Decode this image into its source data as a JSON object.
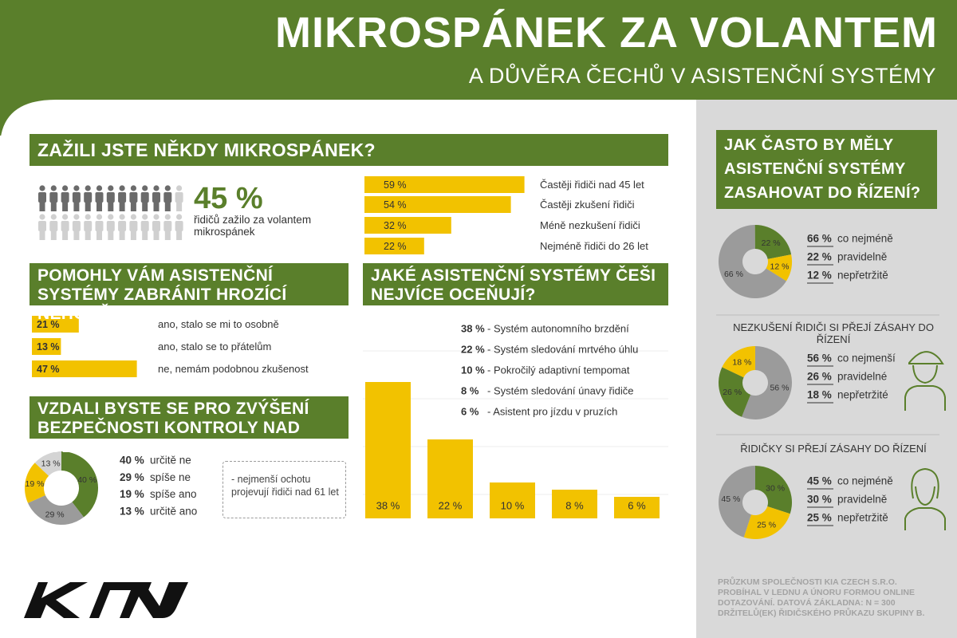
{
  "header": {
    "title": "MIKROSPÁNEK ZA VOLANTEM",
    "subtitle": "A DŮVĚRA ČECHŮ V ASISTENČNÍ SYSTÉMY"
  },
  "microsleep": {
    "title": "ZAŽILI JSTE NĚKDY MIKROSPÁNEK?",
    "value": 45,
    "value_label": "45 %",
    "caption": "řidičů zažilo za volantem mikrospánek",
    "color": "#6b6b6b"
  },
  "groups": {
    "type": "bar",
    "categories": [
      "Častěji řidiči nad 45 let",
      "Častěji zkušení řidiči",
      "Méně nezkušení řidiči",
      "Nejméně řidiči do 26 let"
    ],
    "values": [
      59,
      54,
      32,
      22
    ],
    "value_labels": [
      "59 %",
      "54 %",
      "32 %",
      "22 %"
    ],
    "color": "#f2c200"
  },
  "helped": {
    "type": "bar",
    "title": "POMOHLY VÁM ASISTENČNÍ SYSTÉMY ZABRÁNIT HROZÍCÍ NEHODĚ?",
    "categories": [
      "ano, stalo se mi to osobně",
      "ano, stalo se to přátelům",
      "ne, nemám podobnou zkušenost"
    ],
    "values": [
      21,
      13,
      47
    ],
    "value_labels": [
      "21 %",
      "13 %",
      "47 %"
    ],
    "color": "#f2c200"
  },
  "control": {
    "type": "pie",
    "title": "VZDALI BYSTE SE PRO ZVÝŠENÍ BEZPEČNOSTI KONTROLY NAD VOZEM?",
    "categories": [
      "určitě ne",
      "spíše ne",
      "spíše ano",
      "určitě ano"
    ],
    "values": [
      40,
      29,
      19,
      13
    ],
    "value_labels": [
      "40 %",
      "29 %",
      "19 %",
      "13 %"
    ],
    "colors": [
      "#5a7f2b",
      "#9b9b9b",
      "#f2c200",
      "#d4d4d4"
    ],
    "note": "- nejmenší ochotu projevují řidiči nad 61 let"
  },
  "systems": {
    "type": "bar",
    "title": "JAKÉ ASISTENČNÍ SYSTÉMY ČEŠI NEJVÍCE OCEŇUJÍ?",
    "categories": [
      "- Systém autonomního brzdění",
      "- Systém sledování mrtvého úhlu",
      "- Pokročilý adaptivní tempomat",
      "- Systém sledování únavy řidiče",
      "- Asistent pro jízdu v pruzích"
    ],
    "values": [
      38,
      22,
      10,
      8,
      6
    ],
    "value_labels": [
      "38 %",
      "22 %",
      "10 %",
      "8 %",
      "6 %"
    ],
    "color": "#f2c200"
  },
  "frequency": {
    "type": "pie",
    "title": "JAK ČASTO BY MĚLY ASISTENČNÍ SYSTÉMY ZASAHOVAT DO ŘÍZENÍ?",
    "categories": [
      "co nejméně",
      "pravidelně",
      "nepřetržitě"
    ],
    "values": [
      66,
      22,
      12
    ],
    "value_labels": [
      "66 %",
      "22 %",
      "12 %"
    ],
    "colors": [
      "#9b9b9b",
      "#5a7f2b",
      "#f2c200"
    ]
  },
  "inexperienced": {
    "type": "pie",
    "title": "NEZKUŠENÍ ŘIDIČI SI PŘEJÍ ZÁSAHY DO ŘÍZENÍ",
    "categories": [
      "co nejmenší",
      "pravidelné",
      "nepřetržité"
    ],
    "values": [
      56,
      26,
      18
    ],
    "value_labels": [
      "56 %",
      "26 %",
      "18 %"
    ],
    "colors": [
      "#9b9b9b",
      "#5a7f2b",
      "#f2c200"
    ]
  },
  "women": {
    "type": "pie",
    "title": "ŘIDIČKY SI PŘEJÍ ZÁSAHY DO ŘÍZENÍ",
    "categories": [
      "co nejméně",
      "pravidelně",
      "nepřetržitě"
    ],
    "values": [
      45,
      30,
      25
    ],
    "value_labels": [
      "45 %",
      "30 %",
      "25 %"
    ],
    "colors": [
      "#9b9b9b",
      "#5a7f2b",
      "#f2c200"
    ]
  },
  "footnote": "PRŮZKUM SPOLEČNOSTI KIA CZECH S.R.O. PROBÍHAL V LEDNU A ÚNORU FORMOU ONLINE DOTAZOVÁNÍ. DATOVÁ ZÁKLADNA: N = 300 DRŽITELŮ(EK) ŘIDIČSKÉHO PRŮKAZU SKUPINY B."
}
